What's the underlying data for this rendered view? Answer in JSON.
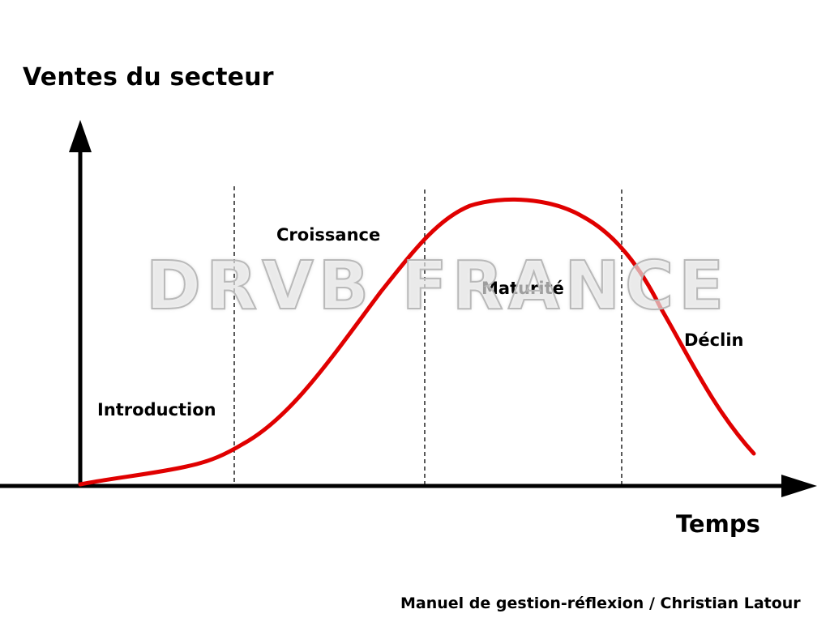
{
  "y_axis_label": "Ventes du secteur",
  "x_axis_label": "Temps",
  "phases": {
    "introduction": "Introduction",
    "croissance": "Croissance",
    "maturite": "Maturité",
    "declin": "Déclin"
  },
  "watermark_text": "DRVB FRANCE",
  "source": "Manuel de gestion-réflexion / Christian Latour",
  "colors": {
    "curve": "#e00000",
    "axis": "#000000",
    "divider": "#000000"
  }
}
